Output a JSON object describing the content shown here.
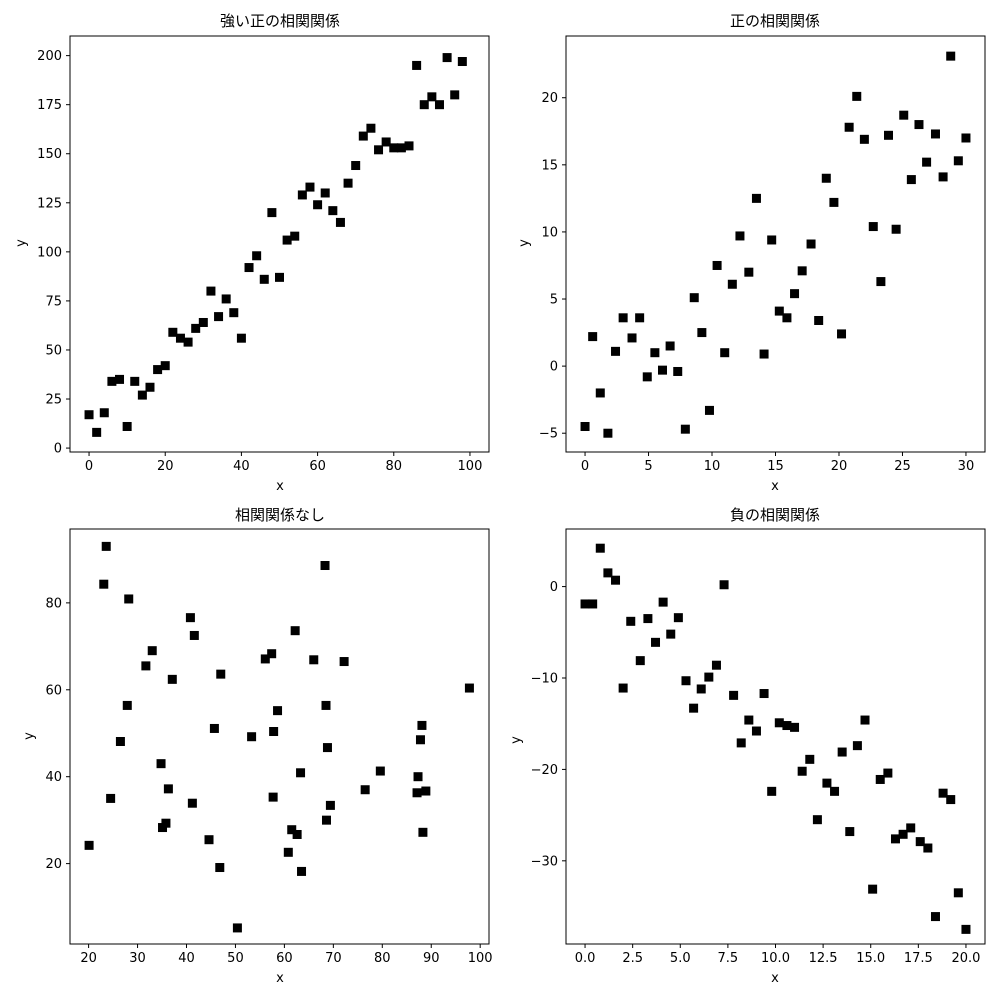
{
  "marker_color": "#000000",
  "chart_data": [
    {
      "type": "scatter",
      "title": "強い正の相関関係",
      "xlabel": "x",
      "ylabel": "y",
      "xlim": [
        -5,
        105
      ],
      "ylim": [
        -2,
        210
      ],
      "xticks": [
        0,
        20,
        40,
        60,
        80,
        100
      ],
      "yticks": [
        0,
        25,
        50,
        75,
        100,
        125,
        150,
        175,
        200
      ],
      "grid": false,
      "marker": "square",
      "points": [
        [
          0,
          17
        ],
        [
          2,
          8
        ],
        [
          4,
          18
        ],
        [
          6,
          34
        ],
        [
          8,
          35
        ],
        [
          10,
          11
        ],
        [
          12,
          34
        ],
        [
          14,
          27
        ],
        [
          16,
          31
        ],
        [
          18,
          40
        ],
        [
          20,
          42
        ],
        [
          22,
          59
        ],
        [
          24,
          56
        ],
        [
          26,
          54
        ],
        [
          28,
          61
        ],
        [
          30,
          64
        ],
        [
          32,
          80
        ],
        [
          34,
          67
        ],
        [
          36,
          76
        ],
        [
          38,
          69
        ],
        [
          40,
          56
        ],
        [
          42,
          92
        ],
        [
          44,
          98
        ],
        [
          46,
          86
        ],
        [
          48,
          120
        ],
        [
          50,
          87
        ],
        [
          52,
          106
        ],
        [
          54,
          108
        ],
        [
          56,
          129
        ],
        [
          58,
          133
        ],
        [
          60,
          124
        ],
        [
          62,
          130
        ],
        [
          64,
          121
        ],
        [
          66,
          115
        ],
        [
          68,
          135
        ],
        [
          70,
          144
        ],
        [
          72,
          159
        ],
        [
          74,
          163
        ],
        [
          76,
          152
        ],
        [
          78,
          156
        ],
        [
          80,
          153
        ],
        [
          82,
          153
        ],
        [
          84,
          154
        ],
        [
          86,
          195
        ],
        [
          88,
          175
        ],
        [
          90,
          179
        ],
        [
          92,
          175
        ],
        [
          94,
          199
        ],
        [
          96,
          180
        ],
        [
          98,
          197
        ]
      ]
    },
    {
      "type": "scatter",
      "title": "正の相関関係",
      "xlabel": "x",
      "ylabel": "y",
      "xlim": [
        -1.5,
        31.5
      ],
      "ylim": [
        -6.4,
        24.6
      ],
      "xticks": [
        0,
        5,
        10,
        15,
        20,
        25,
        30
      ],
      "yticks": [
        -5,
        0,
        5,
        10,
        15,
        20
      ],
      "grid": false,
      "marker": "square",
      "points": [
        [
          0,
          -4.5
        ],
        [
          0.6,
          2.2
        ],
        [
          1.2,
          -2
        ],
        [
          1.8,
          -5
        ],
        [
          2.4,
          1.1
        ],
        [
          3,
          3.6
        ],
        [
          3.7,
          2.1
        ],
        [
          4.3,
          3.6
        ],
        [
          4.9,
          -0.8
        ],
        [
          5.5,
          1
        ],
        [
          6.1,
          -0.3
        ],
        [
          6.7,
          1.5
        ],
        [
          7.3,
          -0.4
        ],
        [
          7.9,
          -4.7
        ],
        [
          8.6,
          5.1
        ],
        [
          9.2,
          2.5
        ],
        [
          9.8,
          -3.3
        ],
        [
          10.4,
          7.5
        ],
        [
          11,
          1
        ],
        [
          11.6,
          6.1
        ],
        [
          12.2,
          9.7
        ],
        [
          12.9,
          7
        ],
        [
          13.5,
          12.5
        ],
        [
          14.1,
          0.9
        ],
        [
          14.7,
          9.4
        ],
        [
          15.3,
          4.1
        ],
        [
          15.9,
          3.6
        ],
        [
          16.5,
          5.4
        ],
        [
          17.1,
          7.1
        ],
        [
          17.8,
          9.1
        ],
        [
          18.4,
          3.4
        ],
        [
          19,
          14
        ],
        [
          19.6,
          12.2
        ],
        [
          20.2,
          2.4
        ],
        [
          20.8,
          17.8
        ],
        [
          21.4,
          20.1
        ],
        [
          22,
          16.9
        ],
        [
          22.7,
          10.4
        ],
        [
          23.3,
          6.3
        ],
        [
          23.9,
          17.2
        ],
        [
          24.5,
          10.2
        ],
        [
          25.1,
          18.7
        ],
        [
          25.7,
          13.9
        ],
        [
          26.3,
          18
        ],
        [
          26.9,
          15.2
        ],
        [
          27.6,
          17.3
        ],
        [
          28.2,
          14.1
        ],
        [
          28.8,
          23.1
        ],
        [
          29.4,
          15.3
        ],
        [
          30,
          17
        ]
      ]
    },
    {
      "type": "scatter",
      "title": "相関関係なし",
      "xlabel": "x",
      "ylabel": "y",
      "xlim": [
        16.2,
        101.8
      ],
      "ylim": [
        1.5,
        97
      ],
      "xticks": [
        20,
        30,
        40,
        50,
        60,
        70,
        80,
        90,
        100
      ],
      "yticks": [
        20,
        40,
        60,
        80
      ],
      "grid": false,
      "marker": "square",
      "points": [
        [
          20.1,
          24.2
        ],
        [
          23.1,
          84.3
        ],
        [
          23.6,
          93
        ],
        [
          24.5,
          35
        ],
        [
          26.5,
          48.1
        ],
        [
          27.9,
          56.4
        ],
        [
          28.2,
          80.9
        ],
        [
          31.7,
          65.5
        ],
        [
          33,
          69
        ],
        [
          34.8,
          43
        ],
        [
          35.1,
          28.3
        ],
        [
          35.8,
          29.3
        ],
        [
          36.3,
          37.2
        ],
        [
          37.1,
          62.4
        ],
        [
          40.8,
          76.6
        ],
        [
          41.2,
          33.9
        ],
        [
          41.6,
          72.5
        ],
        [
          44.6,
          25.5
        ],
        [
          45.7,
          51.1
        ],
        [
          46.8,
          19.1
        ],
        [
          47,
          63.6
        ],
        [
          50.4,
          5.2
        ],
        [
          53.3,
          49.2
        ],
        [
          56.1,
          67.1
        ],
        [
          57.4,
          68.3
        ],
        [
          57.7,
          35.3
        ],
        [
          57.8,
          50.4
        ],
        [
          58.6,
          55.2
        ],
        [
          60.8,
          22.6
        ],
        [
          61.5,
          27.8
        ],
        [
          62.2,
          73.6
        ],
        [
          62.6,
          26.7
        ],
        [
          63.3,
          40.9
        ],
        [
          63.5,
          18.2
        ],
        [
          66,
          66.9
        ],
        [
          68.3,
          88.6
        ],
        [
          68.5,
          56.4
        ],
        [
          68.6,
          30
        ],
        [
          68.8,
          46.7
        ],
        [
          69.4,
          33.4
        ],
        [
          72.2,
          66.5
        ],
        [
          76.5,
          37
        ],
        [
          79.6,
          41.3
        ],
        [
          87.1,
          36.3
        ],
        [
          87.3,
          40
        ],
        [
          87.8,
          48.5
        ],
        [
          88.1,
          51.8
        ],
        [
          88.3,
          27.2
        ],
        [
          88.9,
          36.7
        ],
        [
          97.8,
          60.4
        ]
      ]
    },
    {
      "type": "scatter",
      "title": "負の相関関係",
      "xlabel": "x",
      "ylabel": "y",
      "xlim": [
        -1,
        21
      ],
      "ylim": [
        -39.1,
        6.3
      ],
      "xticks": [
        0.0,
        2.5,
        5.0,
        7.5,
        10.0,
        12.5,
        15.0,
        17.5,
        20.0
      ],
      "yticks": [
        -30,
        -20,
        -10,
        0
      ],
      "grid": false,
      "marker": "square",
      "points": [
        [
          0,
          -1.9
        ],
        [
          0.4,
          -1.9
        ],
        [
          0.8,
          4.2
        ],
        [
          1.2,
          1.5
        ],
        [
          1.6,
          0.7
        ],
        [
          2,
          -11.1
        ],
        [
          2.4,
          -3.8
        ],
        [
          2.9,
          -8.1
        ],
        [
          3.3,
          -3.5
        ],
        [
          3.7,
          -6.1
        ],
        [
          4.1,
          -1.7
        ],
        [
          4.5,
          -5.2
        ],
        [
          4.9,
          -3.4
        ],
        [
          5.3,
          -10.3
        ],
        [
          5.7,
          -13.3
        ],
        [
          6.1,
          -11.2
        ],
        [
          6.5,
          -9.9
        ],
        [
          6.9,
          -8.6
        ],
        [
          7.3,
          0.2
        ],
        [
          7.8,
          -11.9
        ],
        [
          8.2,
          -17.1
        ],
        [
          8.6,
          -14.6
        ],
        [
          9,
          -15.8
        ],
        [
          9.4,
          -11.7
        ],
        [
          9.8,
          -22.4
        ],
        [
          10.2,
          -14.9
        ],
        [
          10.6,
          -15.2
        ],
        [
          11,
          -15.4
        ],
        [
          11.4,
          -20.2
        ],
        [
          11.8,
          -18.9
        ],
        [
          12.2,
          -25.5
        ],
        [
          12.7,
          -21.5
        ],
        [
          13.1,
          -22.4
        ],
        [
          13.5,
          -18.1
        ],
        [
          13.9,
          -26.8
        ],
        [
          14.3,
          -17.4
        ],
        [
          14.7,
          -14.6
        ],
        [
          15.1,
          -33.1
        ],
        [
          15.5,
          -21.1
        ],
        [
          15.9,
          -20.4
        ],
        [
          16.3,
          -27.6
        ],
        [
          16.7,
          -27.1
        ],
        [
          17.1,
          -26.4
        ],
        [
          17.6,
          -27.9
        ],
        [
          18,
          -28.6
        ],
        [
          18.4,
          -36.1
        ],
        [
          18.8,
          -22.6
        ],
        [
          19.2,
          -23.3
        ],
        [
          19.6,
          -33.5
        ],
        [
          20,
          -37.5
        ]
      ]
    }
  ]
}
